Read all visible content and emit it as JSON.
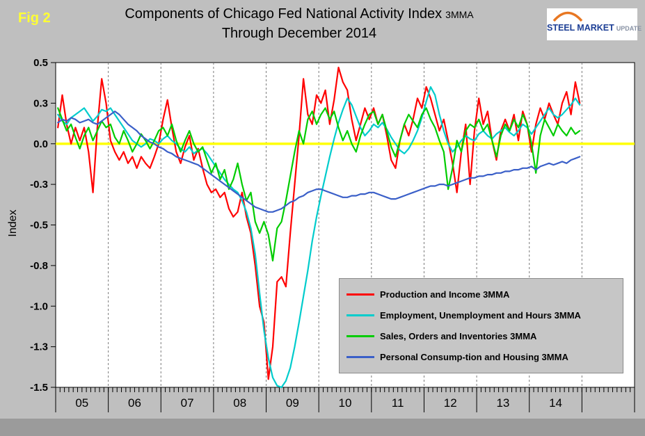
{
  "figure_label": "Fig 2",
  "logo": {
    "word1": "STEEL",
    "word2": "MARKET",
    "word3": "UPDATE"
  },
  "chart_data": {
    "type": "line",
    "title": "Components of Chicago Fed National Activity Index",
    "title_suffix": "3MMA",
    "subtitle": "Through December 2014",
    "x_axis": {
      "unit": "month",
      "start": "Jan 2005",
      "end": "Dec 2014",
      "year_slots": 11,
      "labels": [
        "05",
        "06",
        "07",
        "08",
        "09",
        "10",
        "11",
        "12",
        "13",
        "14"
      ],
      "gridlines": "vertical dashed at year boundaries"
    },
    "y_axis": {
      "label": "Index",
      "min": -1.5,
      "max": 0.5,
      "tick_values": [
        0.5,
        0.25,
        0,
        -0.25,
        -0.5,
        -0.75,
        -1,
        -1.25,
        -1.5
      ],
      "tick_labels": [
        "0.5",
        "0.3",
        "0.0",
        "-0.3",
        "-0.5",
        "-0.8",
        "-1.0",
        "-1.3",
        "-1.5"
      ]
    },
    "ylim": [
      -1.5,
      0.5
    ],
    "zero_line": {
      "value": 0,
      "color": "#FFFF00"
    },
    "legend_position": "inside lower-right",
    "series": [
      {
        "name": "Production and Income 3MMA",
        "color": "#FF0000",
        "values": [
          0.1,
          0.3,
          0.12,
          0.0,
          0.1,
          0.02,
          0.1,
          -0.05,
          -0.3,
          0.1,
          0.4,
          0.25,
          0.02,
          -0.05,
          -0.1,
          -0.05,
          -0.12,
          -0.08,
          -0.15,
          -0.08,
          -0.12,
          -0.15,
          -0.08,
          0.0,
          0.15,
          0.27,
          0.1,
          -0.05,
          -0.12,
          -0.02,
          0.05,
          -0.1,
          -0.03,
          -0.15,
          -0.25,
          -0.3,
          -0.28,
          -0.33,
          -0.3,
          -0.4,
          -0.45,
          -0.42,
          -0.3,
          -0.45,
          -0.55,
          -0.75,
          -1.0,
          -1.1,
          -1.45,
          -1.25,
          -0.85,
          -0.82,
          -0.88,
          -0.55,
          -0.25,
          0.05,
          0.4,
          0.18,
          0.12,
          0.3,
          0.25,
          0.33,
          0.12,
          0.27,
          0.47,
          0.38,
          0.33,
          0.15,
          0.02,
          0.12,
          0.22,
          0.15,
          0.22,
          0.12,
          0.18,
          0.05,
          -0.1,
          -0.15,
          0.02,
          0.12,
          0.05,
          0.15,
          0.28,
          0.22,
          0.35,
          0.28,
          0.18,
          0.08,
          0.15,
          0.02,
          -0.12,
          -0.3,
          -0.05,
          0.12,
          -0.25,
          0.08,
          0.28,
          0.12,
          0.2,
          0.02,
          -0.1,
          0.08,
          0.15,
          0.08,
          0.18,
          0.02,
          0.2,
          0.12,
          -0.05,
          0.12,
          0.22,
          0.15,
          0.25,
          0.18,
          0.12,
          0.25,
          0.32,
          0.18,
          0.38,
          0.25
        ]
      },
      {
        "name": "Employment, Unemployment and Hours 3MMA",
        "color": "#00CCCC",
        "values": [
          0.18,
          0.14,
          0.12,
          0.16,
          0.18,
          0.2,
          0.22,
          0.18,
          0.14,
          0.17,
          0.21,
          0.2,
          0.22,
          0.18,
          0.14,
          0.1,
          0.06,
          0.02,
          0.0,
          -0.02,
          0.0,
          0.03,
          0.02,
          0.0,
          0.03,
          0.05,
          0.02,
          0.0,
          -0.03,
          -0.05,
          -0.02,
          -0.06,
          -0.04,
          -0.03,
          -0.06,
          -0.1,
          -0.14,
          -0.18,
          -0.22,
          -0.25,
          -0.28,
          -0.3,
          -0.35,
          -0.42,
          -0.52,
          -0.68,
          -0.92,
          -1.15,
          -1.32,
          -1.44,
          -1.49,
          -1.5,
          -1.46,
          -1.38,
          -1.25,
          -1.1,
          -0.94,
          -0.78,
          -0.6,
          -0.45,
          -0.32,
          -0.2,
          -0.08,
          0.03,
          0.13,
          0.21,
          0.28,
          0.24,
          0.17,
          0.1,
          0.05,
          0.08,
          0.12,
          0.1,
          0.13,
          0.09,
          0.04,
          0.0,
          -0.04,
          -0.06,
          -0.03,
          0.02,
          0.08,
          0.16,
          0.26,
          0.35,
          0.3,
          0.18,
          0.08,
          0.0,
          -0.05,
          -0.02,
          0.02,
          0.05,
          0.03,
          0.02,
          0.06,
          0.08,
          0.05,
          0.03,
          0.06,
          0.08,
          0.1,
          0.07,
          0.05,
          0.08,
          0.12,
          0.1,
          0.06,
          0.1,
          0.14,
          0.18,
          0.22,
          0.18,
          0.16,
          0.18,
          0.21,
          0.24,
          0.28,
          0.24
        ]
      },
      {
        "name": "Sales, Orders and Inventories 3MMA",
        "color": "#00CC00",
        "values": [
          0.22,
          0.15,
          0.08,
          0.12,
          0.04,
          -0.03,
          0.05,
          0.1,
          0.02,
          0.08,
          0.14,
          0.1,
          0.12,
          0.04,
          0.0,
          0.08,
          0.02,
          -0.05,
          0.0,
          0.06,
          0.02,
          -0.03,
          0.02,
          0.08,
          0.1,
          0.05,
          0.12,
          0.02,
          -0.05,
          0.02,
          0.08,
          0.0,
          -0.05,
          -0.02,
          -0.1,
          -0.18,
          -0.12,
          -0.22,
          -0.16,
          -0.28,
          -0.22,
          -0.12,
          -0.25,
          -0.35,
          -0.3,
          -0.48,
          -0.55,
          -0.48,
          -0.56,
          -0.72,
          -0.52,
          -0.48,
          -0.35,
          -0.2,
          -0.05,
          0.08,
          0.0,
          0.15,
          0.2,
          0.12,
          0.18,
          0.22,
          0.15,
          0.2,
          0.1,
          0.02,
          0.08,
          0.0,
          -0.05,
          0.05,
          0.12,
          0.18,
          0.2,
          0.12,
          0.18,
          0.08,
          -0.02,
          -0.08,
          0.02,
          0.12,
          0.18,
          0.14,
          0.1,
          0.18,
          0.22,
          0.15,
          0.1,
          0.02,
          -0.05,
          -0.28,
          -0.15,
          0.02,
          -0.05,
          0.08,
          0.12,
          0.1,
          0.15,
          0.08,
          0.12,
          0.02,
          -0.08,
          0.05,
          0.12,
          0.08,
          0.15,
          0.1,
          0.18,
          0.12,
          0.0,
          -0.18,
          0.05,
          0.15,
          0.1,
          0.05,
          0.12,
          0.08,
          0.05,
          0.1,
          0.06,
          0.08
        ]
      },
      {
        "name": "Personal Consump-tion and Housing 3MMA",
        "color": "#3A5FC8",
        "values": [
          0.13,
          0.15,
          0.14,
          0.16,
          0.15,
          0.13,
          0.14,
          0.15,
          0.13,
          0.12,
          0.14,
          0.16,
          0.18,
          0.2,
          0.18,
          0.15,
          0.12,
          0.1,
          0.08,
          0.05,
          0.03,
          0.01,
          0.0,
          -0.02,
          -0.03,
          -0.05,
          -0.06,
          -0.08,
          -0.09,
          -0.1,
          -0.11,
          -0.12,
          -0.13,
          -0.15,
          -0.17,
          -0.19,
          -0.21,
          -0.23,
          -0.25,
          -0.27,
          -0.29,
          -0.31,
          -0.33,
          -0.35,
          -0.37,
          -0.39,
          -0.4,
          -0.41,
          -0.42,
          -0.42,
          -0.41,
          -0.4,
          -0.38,
          -0.36,
          -0.35,
          -0.33,
          -0.32,
          -0.3,
          -0.29,
          -0.28,
          -0.28,
          -0.29,
          -0.3,
          -0.31,
          -0.32,
          -0.33,
          -0.33,
          -0.32,
          -0.32,
          -0.31,
          -0.31,
          -0.3,
          -0.3,
          -0.31,
          -0.32,
          -0.33,
          -0.34,
          -0.34,
          -0.33,
          -0.32,
          -0.31,
          -0.3,
          -0.29,
          -0.28,
          -0.27,
          -0.26,
          -0.26,
          -0.25,
          -0.25,
          -0.26,
          -0.25,
          -0.24,
          -0.23,
          -0.22,
          -0.21,
          -0.21,
          -0.2,
          -0.2,
          -0.19,
          -0.19,
          -0.18,
          -0.18,
          -0.17,
          -0.17,
          -0.16,
          -0.16,
          -0.15,
          -0.15,
          -0.14,
          -0.16,
          -0.14,
          -0.13,
          -0.12,
          -0.13,
          -0.12,
          -0.11,
          -0.12,
          -0.1,
          -0.09,
          -0.08
        ]
      }
    ]
  }
}
